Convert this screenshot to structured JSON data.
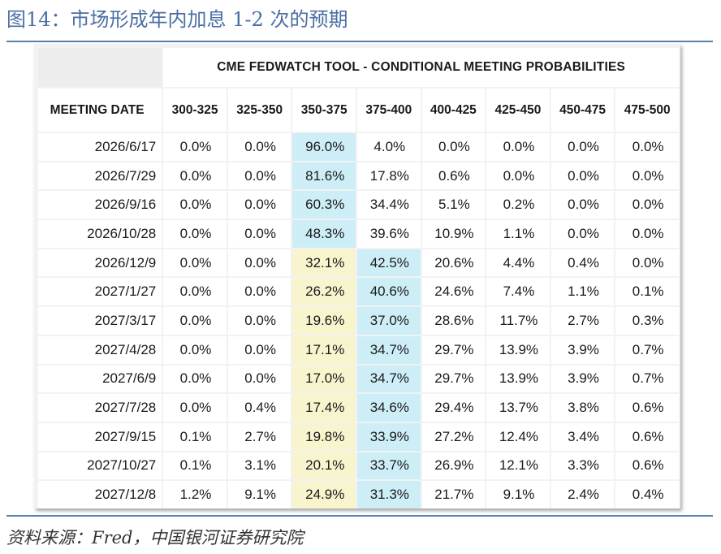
{
  "header": {
    "title": "图14：市场形成年内加息 1-2 次的预期"
  },
  "footer": {
    "source": "资料来源：Fred，中国银河证券研究院"
  },
  "colors": {
    "title": "#4a6fa5",
    "highest_probability": "#cdeef7",
    "second_probability": "#f8f4cd",
    "rule": "#5a7fb5"
  },
  "chart_data": {
    "type": "table",
    "title": "CME FEDWATCH TOOL - CONDITIONAL MEETING PROBABILITIES",
    "row_header": "MEETING DATE",
    "columns": [
      "300-325",
      "325-350",
      "350-375",
      "375-400",
      "400-425",
      "425-450",
      "450-475",
      "475-500"
    ],
    "rows": [
      {
        "date": "2026/6/17",
        "values": [
          "0.0%",
          "0.0%",
          "96.0%",
          "4.0%",
          "0.0%",
          "0.0%",
          "0.0%",
          "0.0%"
        ],
        "highlight": [
          null,
          null,
          "blue",
          null,
          null,
          null,
          null,
          null
        ]
      },
      {
        "date": "2026/7/29",
        "values": [
          "0.0%",
          "0.0%",
          "81.6%",
          "17.8%",
          "0.6%",
          "0.0%",
          "0.0%",
          "0.0%"
        ],
        "highlight": [
          null,
          null,
          "blue",
          null,
          null,
          null,
          null,
          null
        ]
      },
      {
        "date": "2026/9/16",
        "values": [
          "0.0%",
          "0.0%",
          "60.3%",
          "34.4%",
          "5.1%",
          "0.2%",
          "0.0%",
          "0.0%"
        ],
        "highlight": [
          null,
          null,
          "blue",
          null,
          null,
          null,
          null,
          null
        ]
      },
      {
        "date": "2026/10/28",
        "values": [
          "0.0%",
          "0.0%",
          "48.3%",
          "39.6%",
          "10.9%",
          "1.1%",
          "0.0%",
          "0.0%"
        ],
        "highlight": [
          null,
          null,
          "blue",
          null,
          null,
          null,
          null,
          null
        ]
      },
      {
        "date": "2026/12/9",
        "values": [
          "0.0%",
          "0.0%",
          "32.1%",
          "42.5%",
          "20.6%",
          "4.4%",
          "0.4%",
          "0.0%"
        ],
        "highlight": [
          null,
          null,
          "yellow",
          "blue",
          null,
          null,
          null,
          null
        ]
      },
      {
        "date": "2027/1/27",
        "values": [
          "0.0%",
          "0.0%",
          "26.2%",
          "40.6%",
          "24.6%",
          "7.4%",
          "1.1%",
          "0.1%"
        ],
        "highlight": [
          null,
          null,
          "yellow",
          "blue",
          null,
          null,
          null,
          null
        ]
      },
      {
        "date": "2027/3/17",
        "values": [
          "0.0%",
          "0.0%",
          "19.6%",
          "37.0%",
          "28.6%",
          "11.7%",
          "2.7%",
          "0.3%"
        ],
        "highlight": [
          null,
          null,
          "yellow",
          "blue",
          null,
          null,
          null,
          null
        ]
      },
      {
        "date": "2027/4/28",
        "values": [
          "0.0%",
          "0.0%",
          "17.1%",
          "34.7%",
          "29.7%",
          "13.9%",
          "3.9%",
          "0.7%"
        ],
        "highlight": [
          null,
          null,
          "yellow",
          "blue",
          null,
          null,
          null,
          null
        ]
      },
      {
        "date": "2027/6/9",
        "values": [
          "0.0%",
          "0.0%",
          "17.0%",
          "34.7%",
          "29.7%",
          "13.9%",
          "3.9%",
          "0.7%"
        ],
        "highlight": [
          null,
          null,
          "yellow",
          "blue",
          null,
          null,
          null,
          null
        ]
      },
      {
        "date": "2027/7/28",
        "values": [
          "0.0%",
          "0.4%",
          "17.4%",
          "34.6%",
          "29.4%",
          "13.7%",
          "3.8%",
          "0.6%"
        ],
        "highlight": [
          null,
          null,
          "yellow",
          "blue",
          null,
          null,
          null,
          null
        ]
      },
      {
        "date": "2027/9/15",
        "values": [
          "0.1%",
          "2.7%",
          "19.8%",
          "33.9%",
          "27.2%",
          "12.4%",
          "3.4%",
          "0.6%"
        ],
        "highlight": [
          null,
          null,
          "yellow",
          "blue",
          null,
          null,
          null,
          null
        ]
      },
      {
        "date": "2027/10/27",
        "values": [
          "0.1%",
          "3.1%",
          "20.1%",
          "33.7%",
          "26.9%",
          "12.1%",
          "3.3%",
          "0.6%"
        ],
        "highlight": [
          null,
          null,
          "yellow",
          "blue",
          null,
          null,
          null,
          null
        ]
      },
      {
        "date": "2027/12/8",
        "values": [
          "1.2%",
          "9.1%",
          "24.9%",
          "31.3%",
          "21.7%",
          "9.1%",
          "2.4%",
          "0.4%"
        ],
        "highlight": [
          null,
          null,
          "yellow",
          "blue",
          null,
          null,
          null,
          null
        ]
      }
    ]
  }
}
